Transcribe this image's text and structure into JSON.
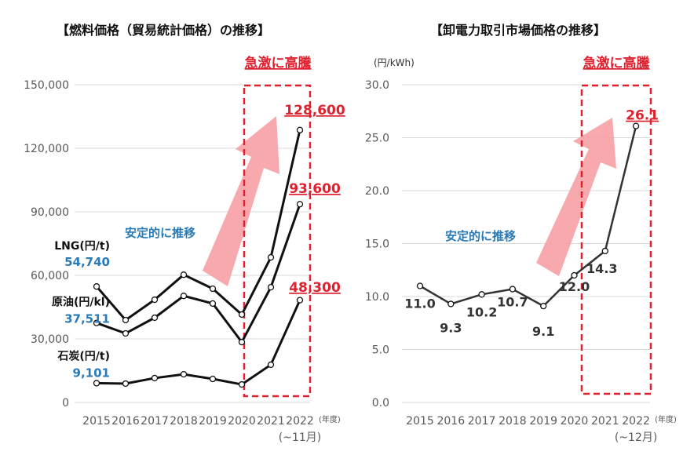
{
  "chart_data": [
    {
      "type": "line",
      "title": "【燃料価格（貿易統計価格）の推移】",
      "categories": [
        "2015",
        "2016",
        "2017",
        "2018",
        "2019",
        "2020",
        "2021",
        "2022"
      ],
      "x_unit": "(年度)",
      "x_note": "(~11月)",
      "ylim": [
        0,
        150000
      ],
      "yticks": [
        "0",
        "30,000",
        "60,000",
        "90,000",
        "120,000",
        "150,000"
      ],
      "grid": true,
      "series": [
        {
          "name": "LNG(円/t)",
          "values": [
            54740,
            38900,
            48500,
            60300,
            53700,
            41500,
            68500,
            128600
          ],
          "start_label": "54,740",
          "end_label": "128,600"
        },
        {
          "name": "原油(円/kl)",
          "values": [
            37511,
            32600,
            40000,
            50300,
            46700,
            28500,
            54400,
            93600
          ],
          "start_label": "37,511",
          "end_label": "93,600"
        },
        {
          "name": "石炭(円/t)",
          "values": [
            9101,
            8900,
            11500,
            13300,
            11100,
            8500,
            17800,
            48300
          ],
          "start_label": "9,101",
          "end_label": "48,300"
        }
      ],
      "annotations": {
        "stable": "安定的に推移",
        "surge": "急激に高騰"
      }
    },
    {
      "type": "line",
      "title": "【卸電力取引市場価格の推移】",
      "ylabel": "(円/kWh)",
      "categories": [
        "2015",
        "2016",
        "2017",
        "2018",
        "2019",
        "2020",
        "2021",
        "2022"
      ],
      "x_unit": "(年度)",
      "x_note": "(~12月)",
      "ylim": [
        0,
        30
      ],
      "yticks": [
        "0.0",
        "5.0",
        "10.0",
        "15.0",
        "20.0",
        "25.0",
        "30.0"
      ],
      "grid": true,
      "series": [
        {
          "values": [
            11.0,
            9.3,
            10.2,
            10.7,
            9.1,
            12.0,
            14.3,
            26.1
          ],
          "labels": [
            "11.0",
            "9.3",
            "10.2",
            "10.7",
            "9.1",
            "12.0",
            "14.3",
            "26.1"
          ]
        }
      ],
      "annotations": {
        "stable": "安定的に推移",
        "surge": "急激に高騰"
      }
    }
  ],
  "colors": {
    "line": "#111111",
    "line_right": "#333333",
    "accent_red": "#e0202e",
    "arrow": "#f6a0a4",
    "blue_text": "#2a7ab8",
    "grid": "#d9d9d9",
    "tick": "#595959"
  }
}
